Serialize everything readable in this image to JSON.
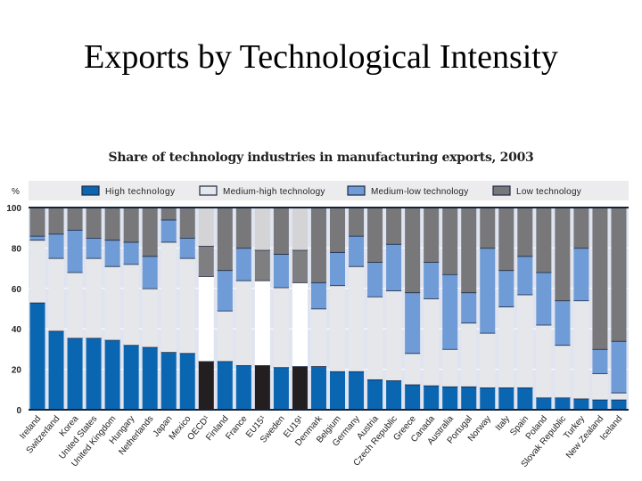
{
  "slide": {
    "title": "Exports by Technological Intensity"
  },
  "chart_data": {
    "type": "bar",
    "stacked": true,
    "title": "Share of technology industries in manufacturing exports, 2003",
    "ylabel": "%",
    "ylim": [
      0,
      100
    ],
    "yticks": [
      0,
      20,
      40,
      60,
      80,
      100
    ],
    "grid": true,
    "legend_placement": "top",
    "categories": [
      "Ireland",
      "Switzerland",
      "Korea",
      "United States",
      "United Kingdom",
      "Hungary",
      "Netherlands",
      "Japan",
      "Mexico",
      "OECD¹",
      "Finland",
      "France",
      "EU15¹",
      "Sweden",
      "EU19¹",
      "Denmark",
      "Belgium",
      "Germany",
      "Austria",
      "Czech Republic",
      "Greece",
      "Canada",
      "Australia",
      "Portugal",
      "Norway",
      "Italy",
      "Spain",
      "Poland",
      "Slovak Republic",
      "Turkey",
      "New Zealand",
      "Iceland"
    ],
    "aggregates": [
      "OECD¹",
      "EU15¹",
      "EU19¹"
    ],
    "series": [
      {
        "name": "High technology",
        "color": "#0b66b2",
        "aggregate_color": "#231f20",
        "values": [
          53,
          39,
          35.5,
          35.5,
          34.5,
          32,
          31,
          28.5,
          28,
          24,
          24,
          22,
          22,
          21,
          21.5,
          21.5,
          19,
          19,
          15,
          14.5,
          12.5,
          12,
          11.5,
          11.5,
          11,
          11,
          11,
          6,
          6,
          5.5,
          5,
          5
        ]
      },
      {
        "name": "Medium-high technology",
        "color": "#e6e7ea",
        "aggregate_color": "#ffffff",
        "values": [
          31,
          36,
          32.5,
          39.5,
          36.5,
          40,
          29,
          54.5,
          47,
          42,
          25,
          42,
          42,
          39.5,
          41.5,
          28.5,
          42.5,
          52,
          41,
          44.5,
          15.5,
          43,
          18.5,
          31.5,
          27,
          40,
          46,
          36,
          26,
          48.5,
          13,
          3.5
        ]
      },
      {
        "name": "Medium-low technology",
        "color": "#6f9bd6",
        "aggregate_color": "#7f7f82",
        "values": [
          2,
          12,
          21,
          10,
          13,
          11,
          16,
          11,
          10,
          15,
          20,
          16,
          15,
          16.5,
          16,
          13,
          16.5,
          15,
          17,
          23,
          30,
          18,
          37,
          15,
          42,
          18,
          19,
          26,
          22,
          26,
          12,
          25.5
        ]
      },
      {
        "name": "Low technology",
        "color": "#78787b",
        "aggregate_color": "#d4d4d6",
        "values": [
          14,
          13,
          11,
          15,
          16,
          17,
          24,
          6,
          15,
          19,
          31,
          20,
          21,
          23,
          21,
          37,
          22,
          14,
          27,
          18,
          42,
          27,
          33,
          42,
          20,
          31,
          24,
          32,
          46,
          20,
          70,
          66
        ]
      }
    ]
  }
}
